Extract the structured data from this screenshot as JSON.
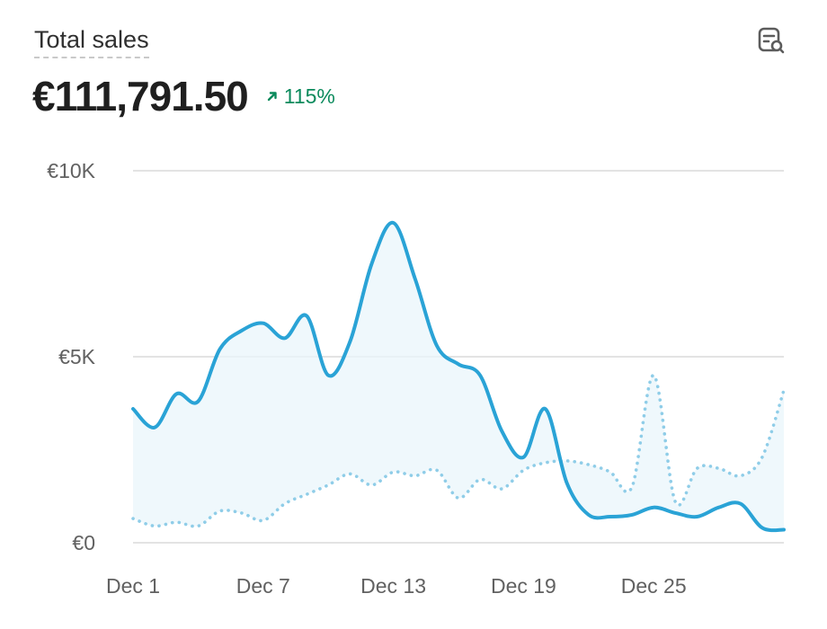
{
  "header": {
    "title": "Total sales",
    "total": "€111,791.50",
    "change": "115%",
    "change_direction": "up",
    "action_icon": "analytics-search-icon"
  },
  "colors": {
    "primary_line": "#2aa3d6",
    "comparison_line": "#8fcde8",
    "area_fill": "#eaf5fb",
    "gridline": "#e3e3e3",
    "positive": "#0b8a5c"
  },
  "chart_data": {
    "type": "line",
    "title": "Total sales",
    "ylim": [
      0,
      10000
    ],
    "yticks": [
      0,
      5000,
      10000
    ],
    "ytick_labels": [
      "€0",
      "€5K",
      "€10K"
    ],
    "x_tick_labels": [
      "Dec 1",
      "Dec 7",
      "Dec 13",
      "Dec 19",
      "Dec 25"
    ],
    "x_tick_days": [
      1,
      7,
      13,
      19,
      25
    ],
    "grid": true,
    "legend": "none",
    "series": [
      {
        "style": "solid",
        "x": [
          1,
          2,
          3,
          4,
          5,
          6,
          7,
          8,
          9,
          10,
          11,
          12,
          13,
          14,
          15,
          16,
          17,
          18,
          19,
          20,
          21,
          22,
          23,
          24,
          25,
          26,
          27,
          28,
          29,
          30,
          31
        ],
        "values": [
          3600,
          3100,
          4000,
          3800,
          5200,
          5700,
          5900,
          5500,
          6100,
          4500,
          5400,
          7500,
          8600,
          7100,
          5300,
          4800,
          4500,
          3000,
          2300,
          3600,
          1600,
          750,
          700,
          750,
          950,
          800,
          700,
          950,
          1050,
          400,
          350
        ]
      },
      {
        "style": "dotted",
        "x": [
          1,
          2,
          3,
          4,
          5,
          6,
          7,
          8,
          9,
          10,
          11,
          12,
          13,
          14,
          15,
          16,
          17,
          18,
          19,
          20,
          21,
          22,
          23,
          24,
          25,
          26,
          27,
          28,
          29,
          30,
          31
        ],
        "values": [
          650,
          450,
          550,
          450,
          850,
          800,
          600,
          1050,
          1300,
          1550,
          1850,
          1550,
          1900,
          1800,
          1950,
          1200,
          1700,
          1450,
          1950,
          2150,
          2200,
          2100,
          1900,
          1500,
          4500,
          1100,
          2000,
          2000,
          1800,
          2300,
          4100
        ]
      }
    ]
  }
}
